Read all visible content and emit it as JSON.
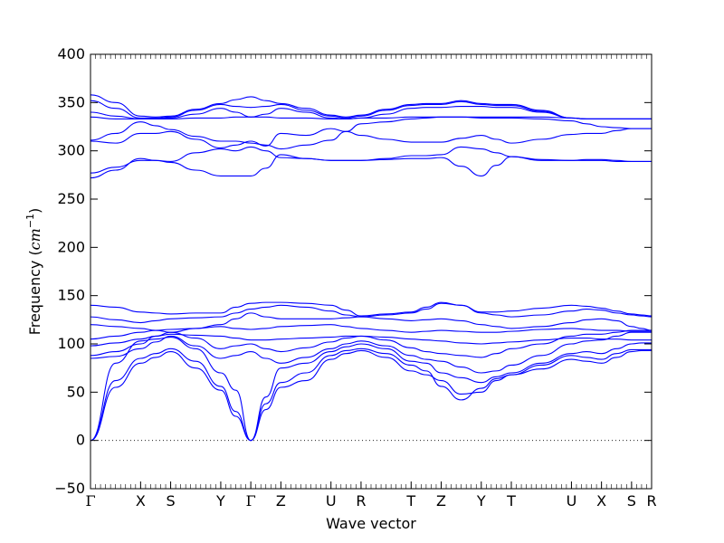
{
  "chart_data": {
    "type": "line",
    "title": "",
    "xlabel": "Wave vector",
    "ylabel_prefix": "Frequency (",
    "ylabel_unit": "cm",
    "ylabel_exp": "−1",
    "ylabel_suffix": ")",
    "ylim": [
      -50,
      400
    ],
    "yticks": [
      -50,
      0,
      50,
      100,
      150,
      200,
      250,
      300,
      350,
      400
    ],
    "ytick_labels": [
      "−50",
      "0",
      "50",
      "100",
      "150",
      "200",
      "250",
      "300",
      "350",
      "400"
    ],
    "zero_line": "dotted",
    "grid": false,
    "line_color": "#0000ff",
    "x_path": [
      {
        "label": "Γ",
        "x": 0.0
      },
      {
        "label": "X",
        "x": 0.5
      },
      {
        "label": "S",
        "x": 0.8
      },
      {
        "label": "Y",
        "x": 1.3
      },
      {
        "label": "Γ",
        "x": 1.6
      },
      {
        "label": "Z",
        "x": 1.9
      },
      {
        "label": "U",
        "x": 2.4
      },
      {
        "label": "R",
        "x": 2.7
      },
      {
        "label": "T",
        "x": 3.2
      },
      {
        "label": "Z",
        "x": 3.5
      },
      {
        "label": "Y",
        "x": 3.9
      },
      {
        "label": "T",
        "x": 4.2
      },
      {
        "label": "U",
        "x": 4.8
      },
      {
        "label": "X",
        "x": 5.1
      },
      {
        "label": "S",
        "x": 5.4
      },
      {
        "label": "R",
        "x": 5.6
      }
    ],
    "xlim": [
      0,
      5.6
    ],
    "series": [
      {
        "x": [
          0,
          0.25,
          0.5,
          0.65,
          0.8,
          1.05,
          1.3,
          1.45,
          1.6,
          1.75,
          1.9,
          2.15,
          2.4,
          2.55,
          2.7,
          2.95,
          3.2,
          3.35,
          3.5,
          3.7,
          3.9,
          4.05,
          4.2,
          4.5,
          4.8,
          4.95,
          5.1,
          5.25,
          5.4,
          5.5,
          5.6
        ],
        "y": [
          0,
          55,
          80,
          86,
          92,
          75,
          52,
          25,
          0,
          32,
          55,
          62,
          84,
          90,
          93,
          86,
          72,
          68,
          62,
          48,
          50,
          62,
          68,
          74,
          84,
          82,
          80,
          86,
          92,
          93,
          93
        ]
      },
      {
        "x": [
          0,
          0.25,
          0.5,
          0.65,
          0.8,
          1.05,
          1.3,
          1.45,
          1.6,
          1.75,
          1.9,
          2.15,
          2.4,
          2.55,
          2.7,
          2.95,
          3.2,
          3.35,
          3.5,
          3.7,
          3.9,
          4.05,
          4.2,
          4.5,
          4.8,
          4.95,
          5.1,
          5.25,
          5.4,
          5.5,
          5.6
        ],
        "y": [
          0,
          62,
          85,
          90,
          95,
          82,
          56,
          30,
          0,
          38,
          60,
          70,
          88,
          93,
          95,
          90,
          78,
          72,
          56,
          42,
          54,
          64,
          68,
          78,
          88,
          86,
          84,
          90,
          94,
          94,
          94
        ]
      },
      {
        "x": [
          0,
          0.25,
          0.5,
          0.65,
          0.8,
          1.05,
          1.3,
          1.45,
          1.6,
          1.75,
          1.9,
          2.15,
          2.4,
          2.55,
          2.7,
          2.95,
          3.2,
          3.35,
          3.5,
          3.7,
          3.9,
          4.05,
          4.2,
          4.5,
          4.8,
          4.95,
          5.1,
          5.25,
          5.4,
          5.5,
          5.6
        ],
        "y": [
          0,
          80,
          103,
          105,
          107,
          95,
          70,
          52,
          0,
          45,
          75,
          80,
          92,
          97,
          100,
          95,
          82,
          80,
          70,
          65,
          60,
          66,
          70,
          80,
          90,
          92,
          90,
          95,
          100,
          101,
          101
        ]
      },
      {
        "x": [
          0,
          0.25,
          0.5,
          0.65,
          0.8,
          1.05,
          1.3,
          1.45,
          1.6,
          1.75,
          1.9,
          2.15,
          2.4,
          2.55,
          2.7,
          2.95,
          3.2,
          3.35,
          3.5,
          3.7,
          3.9,
          4.05,
          4.2,
          4.5,
          4.8,
          4.95,
          5.1,
          5.25,
          5.4,
          5.5,
          5.6
        ],
        "y": [
          85,
          87,
          95,
          102,
          108,
          98,
          85,
          88,
          92,
          85,
          80,
          86,
          95,
          100,
          103,
          98,
          88,
          84,
          82,
          76,
          70,
          72,
          78,
          88,
          100,
          103,
          104,
          108,
          112,
          112,
          112
        ]
      },
      {
        "x": [
          0,
          0.25,
          0.5,
          0.65,
          0.8,
          1.05,
          1.3,
          1.45,
          1.6,
          1.75,
          1.9,
          2.15,
          2.4,
          2.55,
          2.7,
          2.95,
          3.2,
          3.35,
          3.5,
          3.7,
          3.9,
          4.05,
          4.2,
          4.5,
          4.8,
          4.95,
          5.1,
          5.25,
          5.4,
          5.5,
          5.6
        ],
        "y": [
          88,
          92,
          100,
          108,
          112,
          106,
          95,
          98,
          100,
          95,
          92,
          96,
          102,
          106,
          108,
          104,
          96,
          92,
          90,
          88,
          86,
          90,
          95,
          100,
          108,
          110,
          110,
          112,
          114,
          114,
          114
        ]
      },
      {
        "x": [
          0,
          0.25,
          0.5,
          0.65,
          0.8,
          1.05,
          1.3,
          1.45,
          1.6,
          1.75,
          1.9,
          2.15,
          2.4,
          2.55,
          2.7,
          2.95,
          3.2,
          3.35,
          3.5,
          3.7,
          3.9,
          4.05,
          4.2,
          4.5,
          4.8,
          4.95,
          5.1,
          5.25,
          5.4,
          5.5,
          5.6
        ],
        "y": [
          98,
          101,
          105,
          108,
          110,
          109,
          108,
          106,
          104,
          104,
          105,
          106,
          107,
          108,
          108,
          107,
          105,
          104,
          103,
          101,
          100,
          101,
          102,
          104,
          106,
          106,
          105,
          105,
          104,
          104,
          104
        ]
      },
      {
        "x": [
          0,
          0.25,
          0.5,
          0.65,
          0.8,
          1.05,
          1.3,
          1.45,
          1.6,
          1.75,
          1.9,
          2.15,
          2.4,
          2.55,
          2.7,
          2.95,
          3.2,
          3.35,
          3.5,
          3.7,
          3.9,
          4.05,
          4.2,
          4.5,
          4.8,
          4.95,
          5.1,
          5.25,
          5.4,
          5.5,
          5.6
        ],
        "y": [
          105,
          108,
          112,
          114,
          115,
          116,
          118,
          116,
          115,
          116,
          118,
          119,
          120,
          118,
          116,
          114,
          112,
          113,
          114,
          113,
          112,
          112,
          113,
          115,
          116,
          115,
          114,
          114,
          113,
          113,
          113
        ]
      },
      {
        "x": [
          0,
          0.25,
          0.5,
          0.65,
          0.8,
          1.05,
          1.3,
          1.45,
          1.6,
          1.75,
          1.9,
          2.15,
          2.4,
          2.55,
          2.7,
          2.95,
          3.2,
          3.35,
          3.5,
          3.7,
          3.9,
          4.05,
          4.2,
          4.5,
          4.8,
          4.95,
          5.1,
          5.25,
          5.4,
          5.5,
          5.6
        ],
        "y": [
          120,
          118,
          116,
          114,
          112,
          116,
          120,
          126,
          132,
          128,
          126,
          126,
          126,
          127,
          128,
          126,
          124,
          125,
          126,
          124,
          120,
          118,
          116,
          118,
          122,
          125,
          126,
          124,
          118,
          116,
          114
        ]
      },
      {
        "x": [
          0,
          0.25,
          0.5,
          0.65,
          0.8,
          1.05,
          1.3,
          1.45,
          1.6,
          1.75,
          1.9,
          2.15,
          2.4,
          2.55,
          2.7,
          2.95,
          3.2,
          3.35,
          3.5,
          3.7,
          3.9,
          4.05,
          4.2,
          4.5,
          4.8,
          4.95,
          5.1,
          5.25,
          5.4,
          5.5,
          5.6
        ],
        "y": [
          128,
          125,
          122,
          124,
          126,
          127,
          128,
          132,
          136,
          138,
          140,
          138,
          134,
          130,
          128,
          130,
          132,
          136,
          142,
          140,
          132,
          130,
          128,
          130,
          134,
          136,
          135,
          132,
          130,
          129,
          128
        ]
      },
      {
        "x": [
          0,
          0.25,
          0.5,
          0.65,
          0.8,
          1.05,
          1.3,
          1.45,
          1.6,
          1.75,
          1.9,
          2.15,
          2.4,
          2.55,
          2.7,
          2.95,
          3.2,
          3.35,
          3.5,
          3.7,
          3.9,
          4.05,
          4.2,
          4.5,
          4.8,
          4.95,
          5.1,
          5.25,
          5.4,
          5.5,
          5.6
        ],
        "y": [
          140,
          138,
          133,
          132,
          131,
          132,
          132,
          138,
          142,
          143,
          143,
          142,
          140,
          135,
          129,
          131,
          133,
          138,
          143,
          140,
          133,
          133,
          134,
          137,
          140,
          139,
          137,
          134,
          131,
          130,
          129
        ]
      },
      {
        "x": [
          0,
          0.25,
          0.5,
          0.65,
          0.8,
          1.05,
          1.3,
          1.45,
          1.6,
          1.75,
          1.9,
          2.15,
          2.4,
          2.55,
          2.7,
          2.95,
          3.2,
          3.35,
          3.5,
          3.7,
          3.9,
          4.05,
          4.2,
          4.5,
          4.8,
          4.95,
          5.1,
          5.25,
          5.4,
          5.5,
          5.6
        ],
        "y": [
          272,
          280,
          292,
          290,
          288,
          280,
          274,
          274,
          274,
          282,
          296,
          292,
          290,
          290,
          290,
          291,
          292,
          292,
          293,
          284,
          274,
          285,
          294,
          290,
          290,
          290,
          290,
          289,
          289,
          289,
          289
        ]
      },
      {
        "x": [
          0,
          0.25,
          0.5,
          0.65,
          0.8,
          1.05,
          1.3,
          1.45,
          1.6,
          1.75,
          1.9,
          2.15,
          2.4,
          2.55,
          2.7,
          2.95,
          3.2,
          3.35,
          3.5,
          3.7,
          3.9,
          4.05,
          4.2,
          4.5,
          4.8,
          4.95,
          5.1,
          5.25,
          5.4,
          5.5,
          5.6
        ],
        "y": [
          277,
          283,
          290,
          290,
          289,
          298,
          302,
          300,
          304,
          300,
          293,
          292,
          290,
          290,
          290,
          292,
          295,
          295,
          296,
          304,
          302,
          298,
          294,
          291,
          290,
          291,
          291,
          290,
          289,
          289,
          289
        ]
      },
      {
        "x": [
          0,
          0.25,
          0.5,
          0.65,
          0.8,
          1.05,
          1.3,
          1.45,
          1.6,
          1.75,
          1.9,
          2.15,
          2.4,
          2.55,
          2.7,
          2.95,
          3.2,
          3.35,
          3.5,
          3.7,
          3.9,
          4.05,
          4.2,
          4.5,
          4.8,
          4.95,
          5.1,
          5.25,
          5.4,
          5.5,
          5.6
        ],
        "y": [
          310,
          308,
          318,
          318,
          320,
          312,
          303,
          306,
          310,
          305,
          318,
          316,
          323,
          320,
          316,
          312,
          309,
          309,
          309,
          313,
          316,
          312,
          308,
          312,
          317,
          318,
          318,
          321,
          323,
          323,
          323
        ]
      },
      {
        "x": [
          0,
          0.25,
          0.5,
          0.65,
          0.8,
          1.05,
          1.3,
          1.45,
          1.6,
          1.75,
          1.9,
          2.15,
          2.4,
          2.55,
          2.7,
          2.95,
          3.2,
          3.35,
          3.5,
          3.7,
          3.9,
          4.05,
          4.2,
          4.5,
          4.8,
          4.95,
          5.1,
          5.25,
          5.4,
          5.5,
          5.6
        ],
        "y": [
          311,
          318,
          330,
          326,
          322,
          315,
          310,
          310,
          308,
          306,
          302,
          306,
          311,
          320,
          328,
          330,
          333,
          334,
          335,
          335,
          334,
          334,
          334,
          333,
          331,
          328,
          325,
          324,
          323,
          323,
          323
        ]
      },
      {
        "x": [
          0,
          0.25,
          0.5,
          0.65,
          0.8,
          1.05,
          1.3,
          1.45,
          1.6,
          1.75,
          1.9,
          2.15,
          2.4,
          2.55,
          2.7,
          2.95,
          3.2,
          3.35,
          3.5,
          3.7,
          3.9,
          4.05,
          4.2,
          4.5,
          4.8,
          4.95,
          5.1,
          5.25,
          5.4,
          5.5,
          5.6
        ],
        "y": [
          335,
          333,
          333,
          333,
          333,
          334,
          334,
          335,
          335,
          335,
          334,
          334,
          333,
          333,
          334,
          334,
          335,
          335,
          335,
          335,
          335,
          335,
          335,
          335,
          334,
          333,
          333,
          333,
          333,
          333,
          333
        ]
      },
      {
        "x": [
          0,
          0.25,
          0.5,
          0.65,
          0.8,
          1.05,
          1.3,
          1.45,
          1.6,
          1.75,
          1.9,
          2.15,
          2.4,
          2.55,
          2.7,
          2.95,
          3.2,
          3.35,
          3.5,
          3.7,
          3.9,
          4.05,
          4.2,
          4.5,
          4.8,
          4.95,
          5.1,
          5.25,
          5.4,
          5.5,
          5.6
        ],
        "y": [
          340,
          336,
          333,
          333,
          334,
          338,
          344,
          340,
          335,
          338,
          344,
          340,
          334,
          333,
          334,
          338,
          344,
          345,
          345,
          346,
          346,
          345,
          345,
          340,
          334,
          333,
          333,
          333,
          333,
          333,
          333
        ]
      },
      {
        "x": [
          0,
          0.25,
          0.5,
          0.65,
          0.8,
          1.05,
          1.3,
          1.45,
          1.6,
          1.75,
          1.9,
          2.15,
          2.4,
          2.55,
          2.7,
          2.95,
          3.2,
          3.35,
          3.5,
          3.7,
          3.9,
          4.05,
          4.2,
          4.5,
          4.8,
          4.95,
          5.1,
          5.25,
          5.4,
          5.5,
          5.6
        ],
        "y": [
          352,
          344,
          334,
          334,
          335,
          342,
          348,
          346,
          345,
          346,
          348,
          342,
          336,
          334,
          336,
          342,
          347,
          348,
          348,
          351,
          348,
          347,
          347,
          341,
          334,
          333,
          333,
          333,
          333,
          333,
          333
        ]
      },
      {
        "x": [
          0,
          0.25,
          0.5,
          0.65,
          0.8,
          1.05,
          1.3,
          1.45,
          1.6,
          1.75,
          1.9,
          2.15,
          2.4,
          2.55,
          2.7,
          2.95,
          3.2,
          3.35,
          3.5,
          3.7,
          3.9,
          4.05,
          4.2,
          4.5,
          4.8,
          4.95,
          5.1,
          5.25,
          5.4,
          5.5,
          5.6
        ],
        "y": [
          358,
          350,
          336,
          335,
          336,
          343,
          349,
          353,
          356,
          352,
          349,
          344,
          337,
          335,
          337,
          343,
          348,
          349,
          349,
          352,
          349,
          348,
          348,
          342,
          334,
          333,
          333,
          333,
          333,
          333,
          333
        ]
      }
    ]
  }
}
